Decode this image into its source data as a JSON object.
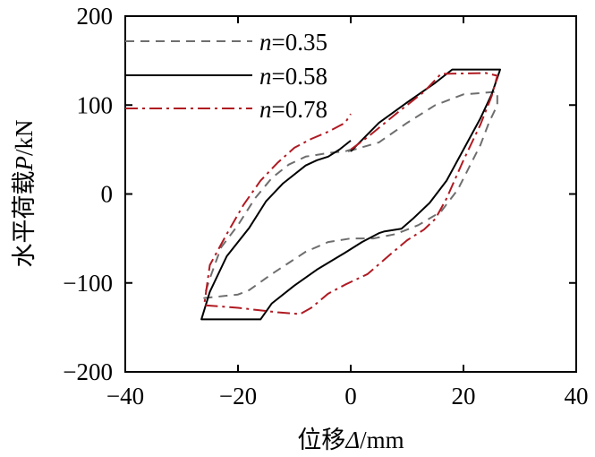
{
  "chart_data": {
    "type": "line",
    "title": "",
    "xlabel": {
      "prefix": "位移",
      "symbol": "Δ",
      "unit": "/mm"
    },
    "ylabel": {
      "prefix": "水平荷载",
      "symbol": "P",
      "unit": "/kN"
    },
    "xlim": [
      -40,
      40
    ],
    "ylim": [
      -200,
      200
    ],
    "xticks": [
      -40,
      -20,
      0,
      20,
      40
    ],
    "xtick_labels": [
      "−40",
      "−20",
      "0",
      "20",
      "40"
    ],
    "yticks": [
      -200,
      -100,
      0,
      100,
      200
    ],
    "ytick_labels": [
      "−200",
      "−100",
      "0",
      "100",
      "200"
    ],
    "grid": false,
    "legend_position": "top-left",
    "series": [
      {
        "name": "n=0.35",
        "legend_var": "n",
        "legend_value": "=0.35",
        "color": "#6e6e6e",
        "style": "dashed",
        "points": [
          [
            -0.5,
            48
          ],
          [
            5,
            58
          ],
          [
            10,
            80
          ],
          [
            15,
            100
          ],
          [
            20,
            112
          ],
          [
            26,
            115
          ],
          [
            26,
            100
          ],
          [
            24.5,
            80
          ],
          [
            23,
            55
          ],
          [
            21,
            30
          ],
          [
            19,
            5
          ],
          [
            16,
            -20
          ],
          [
            12,
            -35
          ],
          [
            8,
            -45
          ],
          [
            4,
            -50
          ],
          [
            0,
            -50
          ],
          [
            -2,
            -52
          ],
          [
            -4,
            -54
          ],
          [
            -8,
            -65
          ],
          [
            -14,
            -90
          ],
          [
            -18,
            -108
          ],
          [
            -20,
            -113
          ],
          [
            -26,
            -117
          ],
          [
            -26,
            -115
          ],
          [
            -25,
            -95
          ],
          [
            -23,
            -60
          ],
          [
            -20,
            -35
          ],
          [
            -17,
            -5
          ],
          [
            -14,
            18
          ],
          [
            -11,
            33
          ],
          [
            -8,
            42
          ],
          [
            -4,
            46
          ],
          [
            -1,
            48
          ],
          [
            0,
            50
          ]
        ]
      },
      {
        "name": "n=0.58",
        "legend_var": "n",
        "legend_value": "=0.58",
        "color": "#000000",
        "style": "solid",
        "points": [
          [
            0,
            48
          ],
          [
            5,
            80
          ],
          [
            10,
            103
          ],
          [
            15,
            125
          ],
          [
            18,
            140
          ],
          [
            26.5,
            140
          ],
          [
            25,
            112
          ],
          [
            23,
            85
          ],
          [
            20,
            50
          ],
          [
            17,
            15
          ],
          [
            14,
            -10
          ],
          [
            11,
            -28
          ],
          [
            9,
            -39
          ],
          [
            6,
            -42
          ],
          [
            5,
            -44
          ],
          [
            2,
            -54
          ],
          [
            -1,
            -66
          ],
          [
            -6,
            -85
          ],
          [
            -10,
            -103
          ],
          [
            -14,
            -123
          ],
          [
            -16,
            -141
          ],
          [
            -26.5,
            -141
          ],
          [
            -25,
            -110
          ],
          [
            -22,
            -70
          ],
          [
            -18,
            -38
          ],
          [
            -15,
            -8
          ],
          [
            -12,
            12
          ],
          [
            -8,
            32
          ],
          [
            -6,
            38
          ],
          [
            -4,
            42
          ],
          [
            -2,
            50
          ],
          [
            0,
            60
          ]
        ]
      },
      {
        "name": "n=0.78",
        "legend_var": "n",
        "legend_value": "=0.78",
        "color": "#b01a22",
        "style": "dashdot",
        "points": [
          [
            0,
            50
          ],
          [
            3,
            64
          ],
          [
            8,
            90
          ],
          [
            13,
            115
          ],
          [
            16,
            135
          ],
          [
            24,
            136
          ],
          [
            26,
            133
          ],
          [
            25,
            110
          ],
          [
            23,
            78
          ],
          [
            20,
            38
          ],
          [
            17,
            -5
          ],
          [
            15,
            -28
          ],
          [
            13,
            -40
          ],
          [
            10,
            -52
          ],
          [
            7,
            -68
          ],
          [
            3,
            -90
          ],
          [
            -1,
            -102
          ],
          [
            -4,
            -112
          ],
          [
            -7,
            -128
          ],
          [
            -9,
            -135
          ],
          [
            -13,
            -133
          ],
          [
            -20,
            -128
          ],
          [
            -26,
            -125
          ],
          [
            -25,
            -80
          ],
          [
            -22,
            -45
          ],
          [
            -19,
            -12
          ],
          [
            -16,
            15
          ],
          [
            -13,
            35
          ],
          [
            -10,
            52
          ],
          [
            -7,
            62
          ],
          [
            -4,
            70
          ],
          [
            -1,
            80
          ],
          [
            0,
            90
          ]
        ]
      }
    ]
  }
}
